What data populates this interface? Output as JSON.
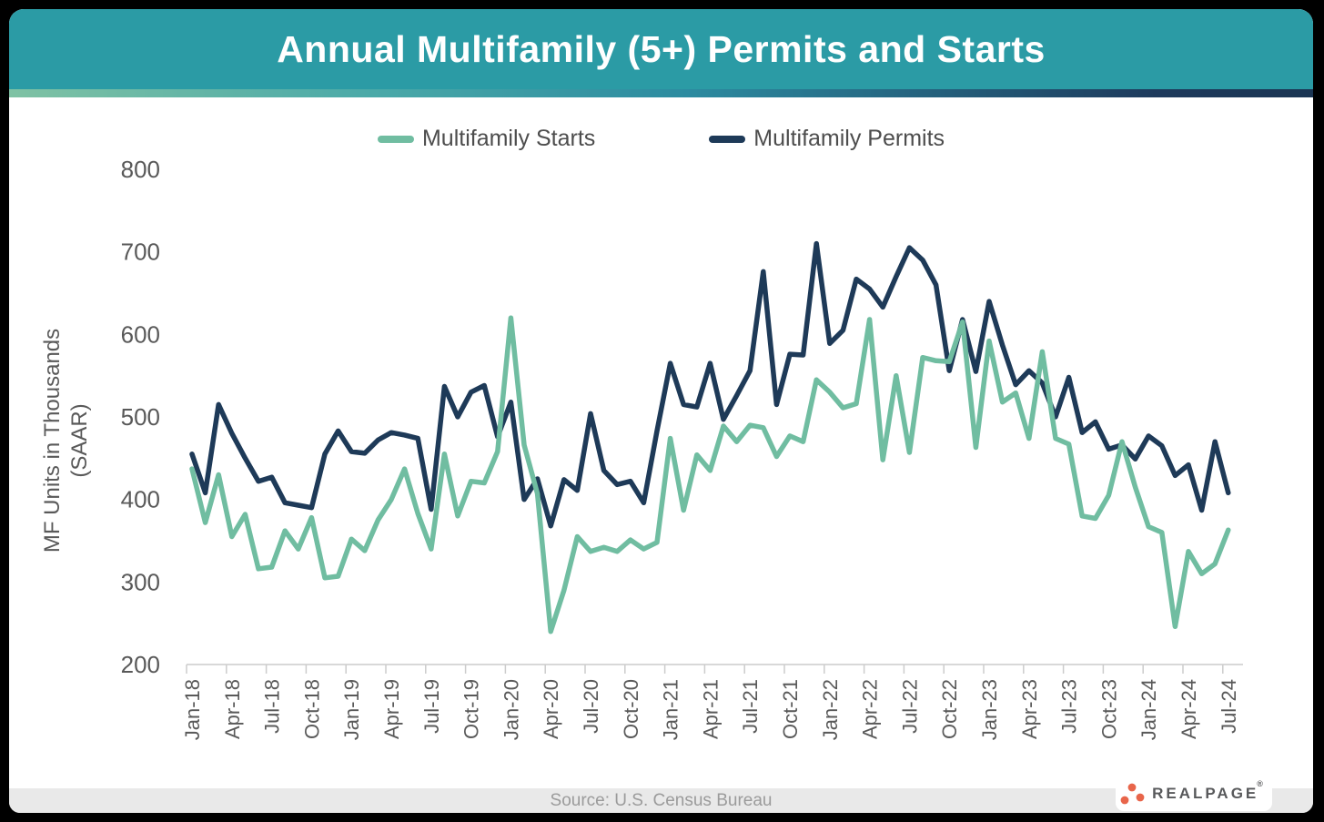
{
  "header": {
    "title": "Annual Multifamily (5+) Permits and Starts"
  },
  "legend": [
    {
      "label": "Multifamily Starts",
      "color": "#70bda1"
    },
    {
      "label": "Multifamily Permits",
      "color": "#1e3a58"
    }
  ],
  "footer": {
    "source": "Source: U.S. Census Bureau"
  },
  "logo": {
    "text": "REALPAGE",
    "reg_mark": "®",
    "dot_color": "#e8654a",
    "text_color": "#58595b"
  },
  "theme": {
    "header_bg": "#2b9ba5",
    "gradient": [
      "#7fc2a4",
      "#2c8ba0",
      "#1e3a5c"
    ],
    "axis_text": "#595959",
    "axis_line": "#cccccc",
    "footer_bg": "#e9e9e9",
    "frame": "#000000"
  },
  "chart_data": {
    "type": "line",
    "title": "Annual Multifamily (5+) Permits and Starts",
    "ylabel_lines": [
      "MF Units in Thousands",
      "(SAAR)"
    ],
    "ylim": [
      200,
      800
    ],
    "yticks": [
      200,
      300,
      400,
      500,
      600,
      700,
      800
    ],
    "xtick_every": 3,
    "grid": false,
    "legend_position": "top",
    "x": [
      "Jan-18",
      "Feb-18",
      "Mar-18",
      "Apr-18",
      "May-18",
      "Jun-18",
      "Jul-18",
      "Aug-18",
      "Sep-18",
      "Oct-18",
      "Nov-18",
      "Dec-18",
      "Jan-19",
      "Feb-19",
      "Mar-19",
      "Apr-19",
      "May-19",
      "Jun-19",
      "Jul-19",
      "Aug-19",
      "Sep-19",
      "Oct-19",
      "Nov-19",
      "Dec-19",
      "Jan-20",
      "Feb-20",
      "Mar-20",
      "Apr-20",
      "May-20",
      "Jun-20",
      "Jul-20",
      "Aug-20",
      "Sep-20",
      "Oct-20",
      "Nov-20",
      "Dec-20",
      "Jan-21",
      "Feb-21",
      "Mar-21",
      "Apr-21",
      "May-21",
      "Jun-21",
      "Jul-21",
      "Aug-21",
      "Sep-21",
      "Oct-21",
      "Nov-21",
      "Dec-21",
      "Jan-22",
      "Feb-22",
      "Mar-22",
      "Apr-22",
      "May-22",
      "Jun-22",
      "Jul-22",
      "Aug-22",
      "Sep-22",
      "Oct-22",
      "Nov-22",
      "Dec-22",
      "Jan-23",
      "Feb-23",
      "Mar-23",
      "Apr-23",
      "May-23",
      "Jun-23",
      "Jul-23",
      "Aug-23",
      "Sep-23",
      "Oct-23",
      "Nov-23",
      "Dec-23",
      "Jan-24",
      "Feb-24",
      "Mar-24",
      "Apr-24",
      "May-24",
      "Jun-24",
      "Jul-24"
    ],
    "series": [
      {
        "name": "Multifamily Starts",
        "color": "#70bda1",
        "values": [
          437,
          372,
          430,
          355,
          382,
          316,
          318,
          362,
          340,
          378,
          305,
          307,
          352,
          338,
          375,
          400,
          437,
          383,
          340,
          455,
          380,
          422,
          420,
          458,
          620,
          466,
          407,
          240,
          290,
          355,
          337,
          342,
          337,
          351,
          340,
          348,
          474,
          387,
          454,
          435,
          489,
          470,
          490,
          487,
          452,
          477,
          470,
          545,
          530,
          511,
          516,
          618,
          448,
          550,
          457,
          572,
          568,
          567,
          615,
          463,
          592,
          518,
          529,
          474,
          579,
          474,
          467,
          380,
          377,
          405,
          470,
          415,
          367,
          360,
          246,
          337,
          310,
          322,
          363
        ]
      },
      {
        "name": "Multifamily Permits",
        "color": "#1e3a58",
        "values": [
          455,
          408,
          515,
          480,
          450,
          422,
          427,
          396,
          393,
          390,
          455,
          483,
          458,
          456,
          472,
          481,
          478,
          474,
          388,
          537,
          500,
          530,
          538,
          476,
          518,
          400,
          425,
          368,
          424,
          411,
          504,
          435,
          418,
          422,
          396,
          483,
          565,
          515,
          512,
          565,
          497,
          526,
          556,
          676,
          515,
          576,
          575,
          710,
          589,
          605,
          667,
          655,
          633,
          670,
          705,
          690,
          660,
          556,
          618,
          555,
          640,
          587,
          539,
          556,
          541,
          500,
          548,
          481,
          494,
          461,
          466,
          449,
          477,
          465,
          429,
          442,
          387,
          470,
          408
        ]
      }
    ]
  }
}
